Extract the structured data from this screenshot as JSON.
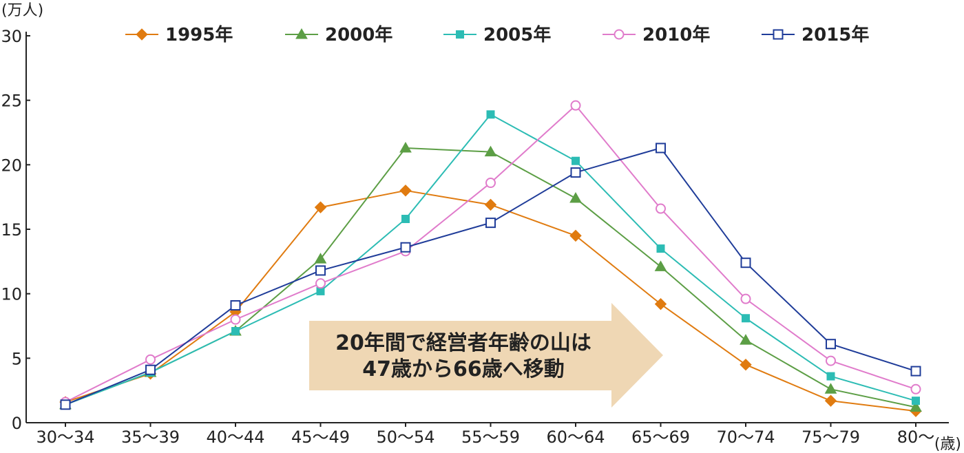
{
  "chart_data": {
    "type": "line",
    "y_unit": "(万人)",
    "x_unit": "(歳)",
    "categories": [
      "30〜34",
      "35〜39",
      "40〜44",
      "45〜49",
      "50〜54",
      "55〜59",
      "60〜64",
      "65〜69",
      "70〜74",
      "75〜79",
      "80〜"
    ],
    "ylim": [
      0,
      30
    ],
    "yticks": [
      0,
      5,
      10,
      15,
      20,
      25,
      30
    ],
    "grid": false,
    "legend_position": "top",
    "series": [
      {
        "name": "1995年",
        "color": "#e07b10",
        "marker": "diamond",
        "values": [
          1.6,
          3.8,
          8.6,
          16.7,
          18.0,
          16.9,
          14.5,
          9.2,
          4.5,
          1.7,
          0.9
        ]
      },
      {
        "name": "2000年",
        "color": "#5c9e45",
        "marker": "triangle",
        "values": [
          1.4,
          3.9,
          7.1,
          12.7,
          21.3,
          21.0,
          17.4,
          12.1,
          6.4,
          2.6,
          1.2
        ]
      },
      {
        "name": "2005年",
        "color": "#2cbcb4",
        "marker": "square-filled",
        "values": [
          1.4,
          3.9,
          7.1,
          10.2,
          15.8,
          23.9,
          20.3,
          13.5,
          8.1,
          3.6,
          1.7
        ]
      },
      {
        "name": "2010年",
        "color": "#e07bcb",
        "marker": "circle-open",
        "values": [
          1.6,
          4.9,
          8.0,
          10.8,
          13.3,
          18.6,
          24.6,
          16.6,
          9.6,
          4.8,
          2.6
        ]
      },
      {
        "name": "2015年",
        "color": "#1f3c99",
        "marker": "square-open",
        "values": [
          1.4,
          4.1,
          9.1,
          11.8,
          13.6,
          15.5,
          19.4,
          21.3,
          12.4,
          6.1,
          4.0
        ]
      }
    ],
    "annotation": {
      "lines": [
        "20年間で経営者年齢の山は",
        "47歳から66歳へ移動"
      ],
      "arrow_color": "#efd7b4"
    }
  }
}
